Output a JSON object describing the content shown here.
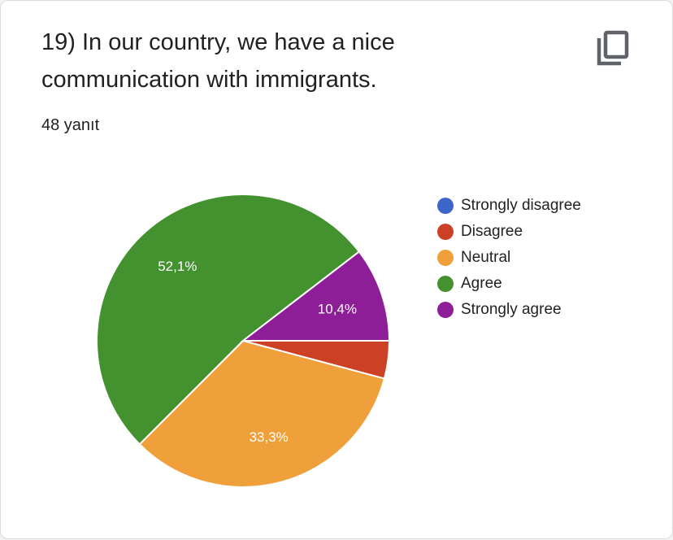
{
  "question": {
    "title": "19) In our country, we have a nice communication with immigrants.",
    "response_count": "48 yanıt"
  },
  "icons": {
    "copy": "copy-icon"
  },
  "chart_data": {
    "type": "pie",
    "total": 48,
    "legend_position": "right",
    "slices": [
      {
        "label": "Strongly disagree",
        "count": 0,
        "percent": 0,
        "percent_label": "",
        "color": "#3e66c9"
      },
      {
        "label": "Disagree",
        "count": 2,
        "percent": 4.2,
        "percent_label": "",
        "color": "#cc4125"
      },
      {
        "label": "Neutral",
        "count": 16,
        "percent": 33.3,
        "percent_label": "33,3%",
        "color": "#f0a03b"
      },
      {
        "label": "Agree",
        "count": 25,
        "percent": 52.1,
        "percent_label": "52,1%",
        "color": "#43922f"
      },
      {
        "label": "Strongly agree",
        "count": 5,
        "percent": 10.4,
        "percent_label": "10,4%",
        "color": "#8e1d98"
      }
    ]
  }
}
